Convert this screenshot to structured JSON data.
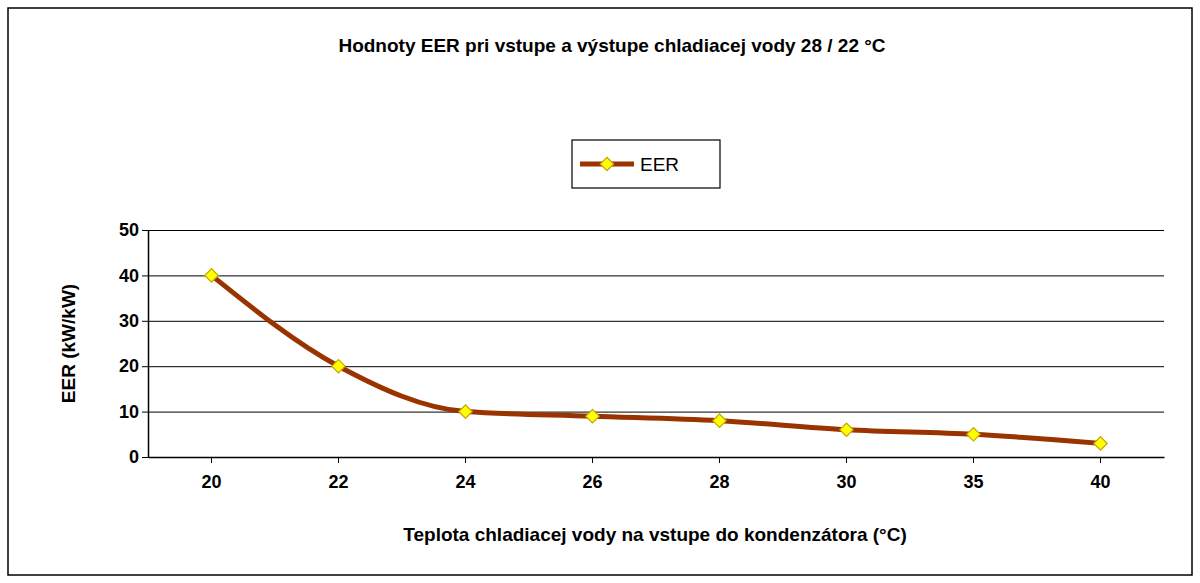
{
  "chart_data": {
    "type": "line",
    "title": "Hodnoty EER pri vstupe a výstupe chladiacej vody 28 / 22 °C",
    "x_label": "Teplota chladiacej vody na vstupe do kondenzátora (°C)",
    "y_label": "EER (kW/kW)",
    "categories": [
      "20",
      "22",
      "24",
      "26",
      "28",
      "30",
      "35",
      "40"
    ],
    "series": [
      {
        "name": "EER",
        "color": "#993300",
        "marker": "diamond",
        "line_style": "solid",
        "values": [
          40,
          20,
          10,
          9,
          8,
          6,
          5,
          3
        ]
      }
    ],
    "ylim": [
      0,
      50
    ],
    "yticks": [
      0,
      10,
      20,
      30,
      40,
      50
    ],
    "grid": true,
    "legend": "top"
  }
}
